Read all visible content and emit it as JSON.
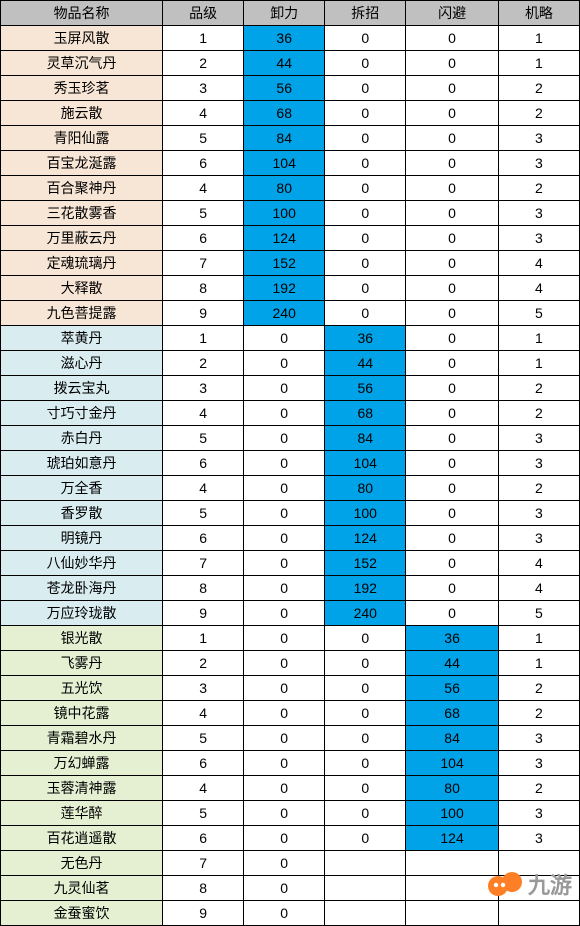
{
  "table": {
    "type": "table",
    "background_color": "#ffffff",
    "border_color": "#000000",
    "header_bg": "#c0c0c0",
    "highlight_color": "#00a2e8",
    "group_colors": {
      "a": "#f7e5d5",
      "b": "#d9edf1",
      "c": "#e5f0d3"
    },
    "font_size": 14,
    "column_widths_pct": [
      28,
      14,
      14,
      14,
      16,
      14
    ],
    "columns": [
      "物品名称",
      "品级",
      "卸力",
      "拆招",
      "闪避",
      "机略"
    ],
    "rows": [
      {
        "group": "a",
        "name": "玉屏风散",
        "grade": 1,
        "xl": 36,
        "cz": 0,
        "sb": 0,
        "jl": 1,
        "hl": "xl"
      },
      {
        "group": "a",
        "name": "灵草沉气丹",
        "grade": 2,
        "xl": 44,
        "cz": 0,
        "sb": 0,
        "jl": 1,
        "hl": "xl"
      },
      {
        "group": "a",
        "name": "秀玉珍茗",
        "grade": 3,
        "xl": 56,
        "cz": 0,
        "sb": 0,
        "jl": 2,
        "hl": "xl"
      },
      {
        "group": "a",
        "name": "施云散",
        "grade": 4,
        "xl": 68,
        "cz": 0,
        "sb": 0,
        "jl": 2,
        "hl": "xl"
      },
      {
        "group": "a",
        "name": "青阳仙露",
        "grade": 5,
        "xl": 84,
        "cz": 0,
        "sb": 0,
        "jl": 3,
        "hl": "xl"
      },
      {
        "group": "a",
        "name": "百宝龙涎露",
        "grade": 6,
        "xl": 104,
        "cz": 0,
        "sb": 0,
        "jl": 3,
        "hl": "xl"
      },
      {
        "group": "a",
        "name": "百合聚神丹",
        "grade": 4,
        "xl": 80,
        "cz": 0,
        "sb": 0,
        "jl": 2,
        "hl": "xl"
      },
      {
        "group": "a",
        "name": "三花散雾香",
        "grade": 5,
        "xl": 100,
        "cz": 0,
        "sb": 0,
        "jl": 3,
        "hl": "xl"
      },
      {
        "group": "a",
        "name": "万里蔽云丹",
        "grade": 6,
        "xl": 124,
        "cz": 0,
        "sb": 0,
        "jl": 3,
        "hl": "xl"
      },
      {
        "group": "a",
        "name": "定魂琉璃丹",
        "grade": 7,
        "xl": 152,
        "cz": 0,
        "sb": 0,
        "jl": 4,
        "hl": "xl"
      },
      {
        "group": "a",
        "name": "大释散",
        "grade": 8,
        "xl": 192,
        "cz": 0,
        "sb": 0,
        "jl": 4,
        "hl": "xl"
      },
      {
        "group": "a",
        "name": "九色菩提露",
        "grade": 9,
        "xl": 240,
        "cz": 0,
        "sb": 0,
        "jl": 5,
        "hl": "xl"
      },
      {
        "group": "b",
        "name": "萃黄丹",
        "grade": 1,
        "xl": 0,
        "cz": 36,
        "sb": 0,
        "jl": 1,
        "hl": "cz"
      },
      {
        "group": "b",
        "name": "滋心丹",
        "grade": 2,
        "xl": 0,
        "cz": 44,
        "sb": 0,
        "jl": 1,
        "hl": "cz"
      },
      {
        "group": "b",
        "name": "拨云宝丸",
        "grade": 3,
        "xl": 0,
        "cz": 56,
        "sb": 0,
        "jl": 2,
        "hl": "cz"
      },
      {
        "group": "b",
        "name": "寸巧寸金丹",
        "grade": 4,
        "xl": 0,
        "cz": 68,
        "sb": 0,
        "jl": 2,
        "hl": "cz"
      },
      {
        "group": "b",
        "name": "赤白丹",
        "grade": 5,
        "xl": 0,
        "cz": 84,
        "sb": 0,
        "jl": 3,
        "hl": "cz"
      },
      {
        "group": "b",
        "name": "琥珀如意丹",
        "grade": 6,
        "xl": 0,
        "cz": 104,
        "sb": 0,
        "jl": 3,
        "hl": "cz"
      },
      {
        "group": "b",
        "name": "万全香",
        "grade": 4,
        "xl": 0,
        "cz": 80,
        "sb": 0,
        "jl": 2,
        "hl": "cz"
      },
      {
        "group": "b",
        "name": "香罗散",
        "grade": 5,
        "xl": 0,
        "cz": 100,
        "sb": 0,
        "jl": 3,
        "hl": "cz"
      },
      {
        "group": "b",
        "name": "明镜丹",
        "grade": 6,
        "xl": 0,
        "cz": 124,
        "sb": 0,
        "jl": 3,
        "hl": "cz"
      },
      {
        "group": "b",
        "name": "八仙妙华丹",
        "grade": 7,
        "xl": 0,
        "cz": 152,
        "sb": 0,
        "jl": 4,
        "hl": "cz"
      },
      {
        "group": "b",
        "name": "苍龙卧海丹",
        "grade": 8,
        "xl": 0,
        "cz": 192,
        "sb": 0,
        "jl": 4,
        "hl": "cz"
      },
      {
        "group": "b",
        "name": "万应玲珑散",
        "grade": 9,
        "xl": 0,
        "cz": 240,
        "sb": 0,
        "jl": 5,
        "hl": "cz"
      },
      {
        "group": "c",
        "name": "银光散",
        "grade": 1,
        "xl": 0,
        "cz": 0,
        "sb": 36,
        "jl": 1,
        "hl": "sb"
      },
      {
        "group": "c",
        "name": "飞雾丹",
        "grade": 2,
        "xl": 0,
        "cz": 0,
        "sb": 44,
        "jl": 1,
        "hl": "sb"
      },
      {
        "group": "c",
        "name": "五光饮",
        "grade": 3,
        "xl": 0,
        "cz": 0,
        "sb": 56,
        "jl": 2,
        "hl": "sb"
      },
      {
        "group": "c",
        "name": "镜中花露",
        "grade": 4,
        "xl": 0,
        "cz": 0,
        "sb": 68,
        "jl": 2,
        "hl": "sb"
      },
      {
        "group": "c",
        "name": "青霜碧水丹",
        "grade": 5,
        "xl": 0,
        "cz": 0,
        "sb": 84,
        "jl": 3,
        "hl": "sb"
      },
      {
        "group": "c",
        "name": "万幻蝉露",
        "grade": 6,
        "xl": 0,
        "cz": 0,
        "sb": 104,
        "jl": 3,
        "hl": "sb"
      },
      {
        "group": "c",
        "name": "玉蓉清神露",
        "grade": 4,
        "xl": 0,
        "cz": 0,
        "sb": 80,
        "jl": 2,
        "hl": "sb"
      },
      {
        "group": "c",
        "name": "莲华醉",
        "grade": 5,
        "xl": 0,
        "cz": 0,
        "sb": 100,
        "jl": 3,
        "hl": "sb"
      },
      {
        "group": "c",
        "name": "百花逍遥散",
        "grade": 6,
        "xl": 0,
        "cz": 0,
        "sb": 124,
        "jl": 3,
        "hl": "sb"
      },
      {
        "group": "c",
        "name": "无色丹",
        "grade": 7,
        "xl": 0,
        "cz": "",
        "sb": "",
        "jl": "",
        "hl": null
      },
      {
        "group": "c",
        "name": "九灵仙茗",
        "grade": 8,
        "xl": 0,
        "cz": "",
        "sb": "",
        "jl": "",
        "hl": null
      },
      {
        "group": "c",
        "name": "金蚕蜜饮",
        "grade": 9,
        "xl": 0,
        "cz": "",
        "sb": "",
        "jl": "",
        "hl": null
      }
    ]
  },
  "watermark": {
    "text": "九游",
    "color": "#999999",
    "icon_fill": "#ff7f27",
    "icon_name": "jiuyou-logo-icon"
  }
}
